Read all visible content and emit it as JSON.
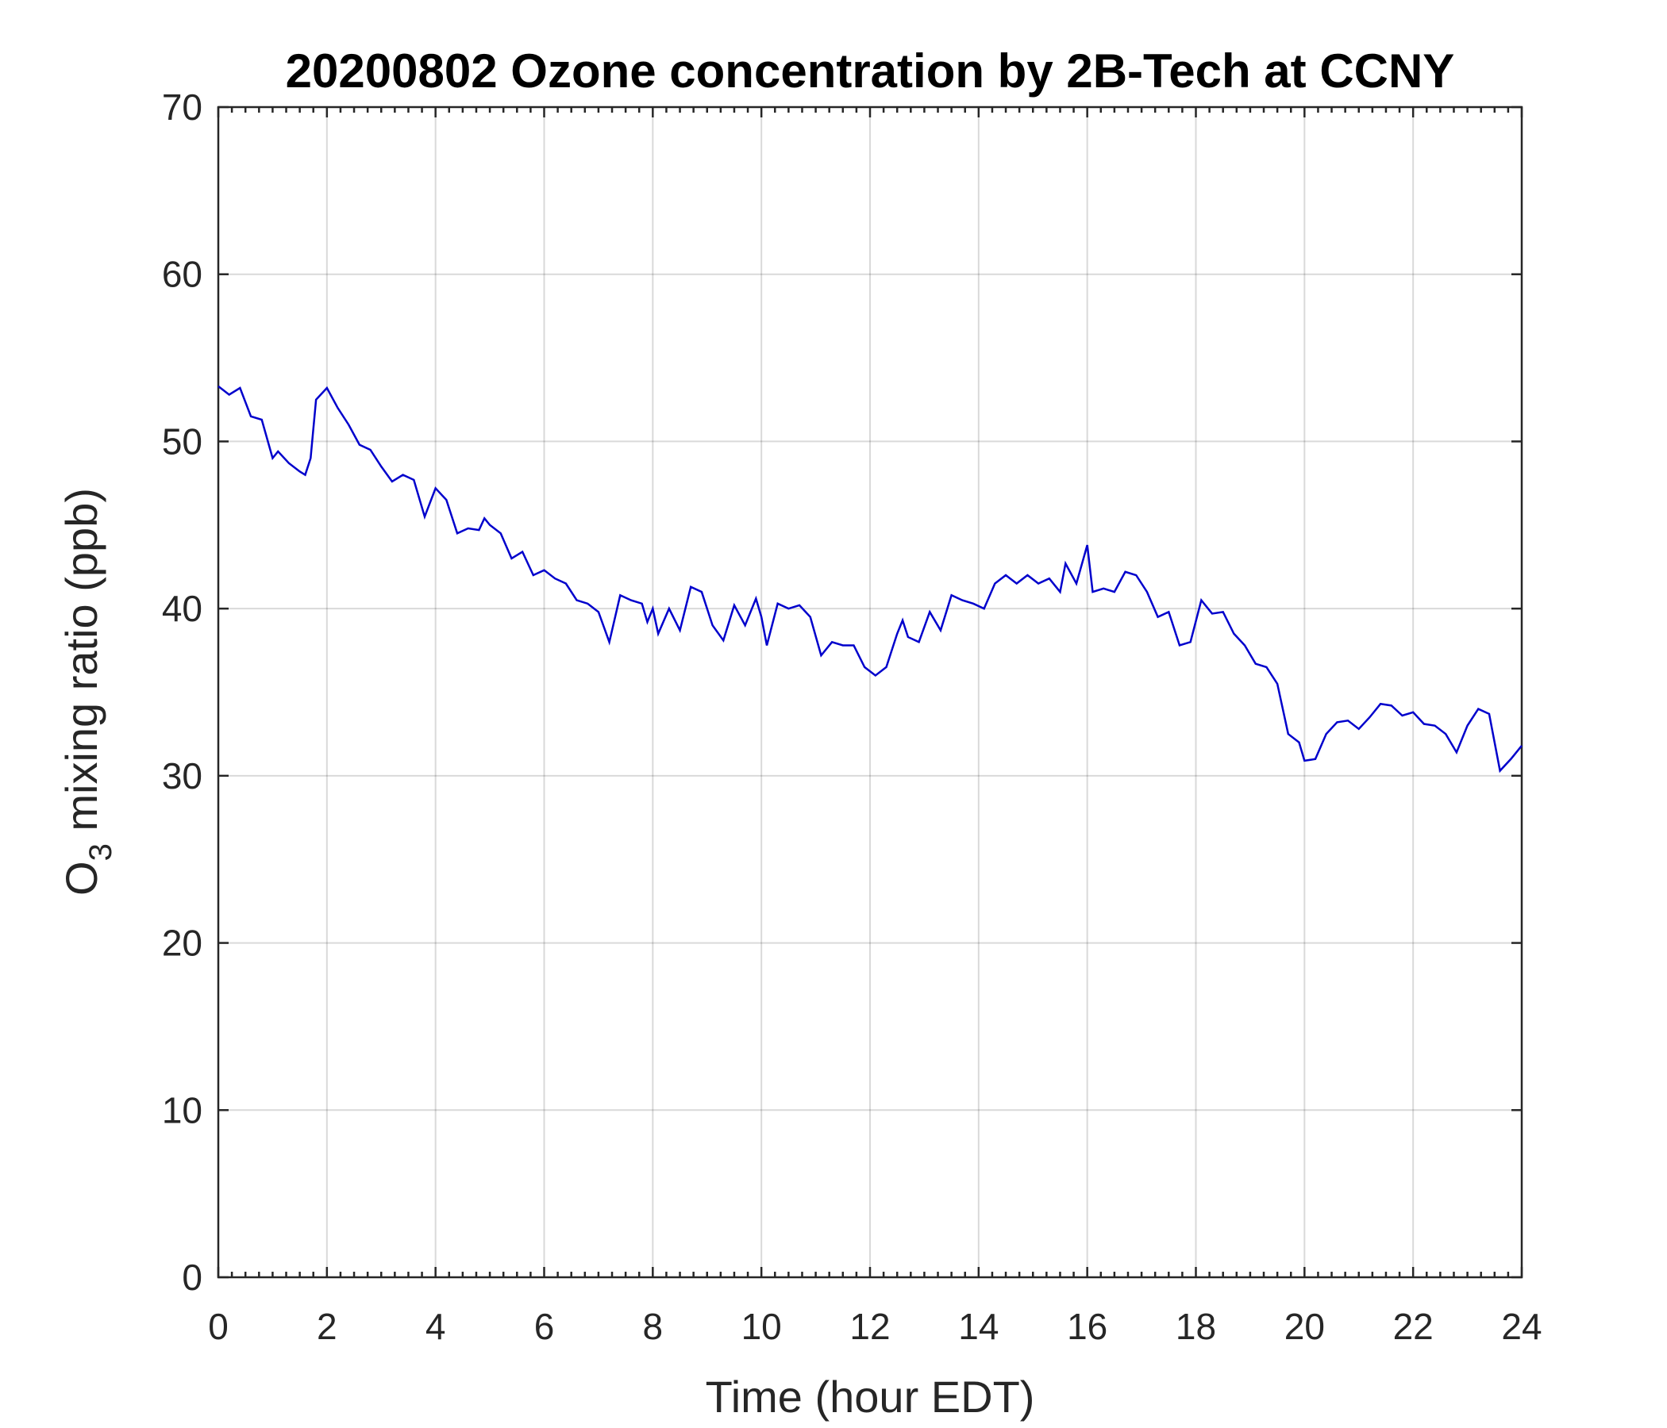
{
  "chart_data": {
    "type": "line",
    "title": "20200802 Ozone concentration by 2B-Tech at CCNY",
    "x_label": "Time (hour EDT)",
    "y_label": [
      "O",
      "3",
      " mixing ratio (ppb)"
    ],
    "xlim": [
      0,
      24
    ],
    "xticks": [
      0,
      2,
      4,
      6,
      8,
      10,
      12,
      14,
      16,
      18,
      20,
      22,
      24
    ],
    "ylim": [
      0,
      70
    ],
    "yticks": [
      0,
      10,
      20,
      30,
      40,
      50,
      60,
      70
    ],
    "grid": true,
    "x": [
      0,
      0.2,
      0.4,
      0.6,
      0.8,
      1.0,
      1.1,
      1.3,
      1.5,
      1.6,
      1.7,
      1.8,
      2.0,
      2.2,
      2.4,
      2.6,
      2.8,
      3.0,
      3.2,
      3.4,
      3.6,
      3.8,
      4.0,
      4.2,
      4.4,
      4.6,
      4.8,
      4.9,
      5.0,
      5.2,
      5.4,
      5.6,
      5.8,
      6.0,
      6.2,
      6.4,
      6.6,
      6.8,
      7.0,
      7.2,
      7.4,
      7.6,
      7.8,
      7.9,
      8.0,
      8.1,
      8.3,
      8.5,
      8.7,
      8.9,
      9.1,
      9.3,
      9.5,
      9.7,
      9.9,
      10.0,
      10.1,
      10.3,
      10.5,
      10.7,
      10.9,
      11.1,
      11.3,
      11.5,
      11.7,
      11.9,
      12.1,
      12.3,
      12.5,
      12.6,
      12.7,
      12.9,
      13.1,
      13.3,
      13.5,
      13.7,
      13.9,
      14.1,
      14.3,
      14.5,
      14.7,
      14.9,
      15.1,
      15.3,
      15.5,
      15.6,
      15.8,
      16.0,
      16.1,
      16.3,
      16.5,
      16.7,
      16.9,
      17.1,
      17.3,
      17.5,
      17.7,
      17.9,
      18.1,
      18.3,
      18.5,
      18.7,
      18.9,
      19.1,
      19.3,
      19.5,
      19.7,
      19.9,
      20.0,
      20.2,
      20.4,
      20.6,
      20.8,
      21.0,
      21.2,
      21.4,
      21.6,
      21.8,
      22.0,
      22.2,
      22.4,
      22.6,
      22.8,
      23.0,
      23.2,
      23.4,
      23.6,
      23.8,
      24.0
    ],
    "series": [
      {
        "name": "O3",
        "color": "#0000cc",
        "values": [
          53.3,
          52.8,
          53.2,
          51.5,
          51.3,
          49.0,
          49.4,
          48.7,
          48.2,
          48.0,
          49.0,
          52.5,
          53.2,
          52.0,
          51.0,
          49.8,
          49.5,
          48.5,
          47.6,
          48.0,
          47.7,
          45.5,
          47.2,
          46.5,
          44.5,
          44.8,
          44.7,
          45.4,
          45.0,
          44.5,
          43.0,
          43.4,
          42.0,
          42.3,
          41.8,
          41.5,
          40.5,
          40.3,
          39.8,
          38.0,
          40.8,
          40.5,
          40.3,
          39.2,
          40.0,
          38.5,
          40.0,
          38.7,
          41.3,
          41.0,
          39.0,
          38.1,
          40.2,
          39.0,
          40.6,
          39.5,
          37.8,
          40.3,
          40.0,
          40.2,
          39.5,
          37.2,
          38.0,
          37.8,
          37.8,
          36.5,
          36.0,
          36.5,
          38.5,
          39.3,
          38.3,
          38.0,
          39.8,
          38.7,
          40.8,
          40.5,
          40.3,
          40.0,
          41.5,
          42.0,
          41.5,
          42.0,
          41.5,
          41.8,
          41.0,
          42.7,
          41.5,
          43.8,
          41.0,
          41.2,
          41.0,
          42.2,
          42.0,
          41.0,
          39.5,
          39.8,
          37.8,
          38.0,
          40.5,
          39.7,
          39.8,
          38.5,
          37.8,
          36.7,
          36.5,
          35.5,
          32.5,
          32.0,
          30.9,
          31.0,
          32.5,
          33.2,
          33.3,
          32.8,
          33.5,
          34.3,
          34.2,
          33.6,
          33.8,
          33.1,
          33.0,
          32.5,
          31.4,
          33.0,
          34.0,
          33.7,
          30.3,
          31.0,
          31.8
        ]
      }
    ]
  }
}
